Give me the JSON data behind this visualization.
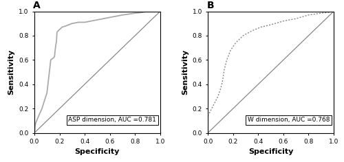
{
  "panel_A_label": "A",
  "panel_B_label": "B",
  "panel_A_annotation": "ASP dimension, AUC =0.781",
  "panel_B_annotation": "W dimension, AUC =0.768",
  "xlabel": "Specificity",
  "ylabel": "Sensitivity",
  "xticks": [
    0.0,
    0.2,
    0.4,
    0.6,
    0.8,
    1.0
  ],
  "yticks": [
    0.0,
    0.2,
    0.4,
    0.6,
    0.8,
    1.0
  ],
  "diagonal_color": "#888888",
  "roc_color_A": "#aaaaaa",
  "roc_color_B": "#888888",
  "background_color": "#ffffff",
  "annotation_fontsize": 6.5,
  "label_fontsize": 8,
  "tick_fontsize": 6.5,
  "panel_label_fontsize": 10,
  "roc_A_x": [
    0.0,
    0.005,
    0.01,
    0.03,
    0.06,
    0.1,
    0.13,
    0.155,
    0.16,
    0.165,
    0.17,
    0.175,
    0.18,
    0.19,
    0.2,
    0.22,
    0.25,
    0.3,
    0.35,
    0.4,
    0.5,
    0.6,
    0.7,
    0.8,
    0.85,
    0.9,
    1.0
  ],
  "roc_A_y": [
    0.0,
    0.05,
    0.08,
    0.13,
    0.2,
    0.33,
    0.6,
    0.62,
    0.63,
    0.68,
    0.72,
    0.75,
    0.83,
    0.84,
    0.85,
    0.87,
    0.88,
    0.9,
    0.91,
    0.91,
    0.93,
    0.95,
    0.97,
    0.985,
    0.99,
    1.0,
    1.0
  ],
  "roc_B_x": [
    0.0,
    0.01,
    0.02,
    0.04,
    0.06,
    0.08,
    0.1,
    0.115,
    0.13,
    0.15,
    0.18,
    0.22,
    0.28,
    0.35,
    0.42,
    0.5,
    0.6,
    0.7,
    0.8,
    0.9,
    0.95,
    1.0
  ],
  "roc_B_y": [
    0.14,
    0.16,
    0.18,
    0.22,
    0.26,
    0.3,
    0.36,
    0.42,
    0.52,
    0.6,
    0.68,
    0.74,
    0.8,
    0.84,
    0.87,
    0.89,
    0.92,
    0.94,
    0.97,
    0.985,
    0.99,
    1.0
  ]
}
